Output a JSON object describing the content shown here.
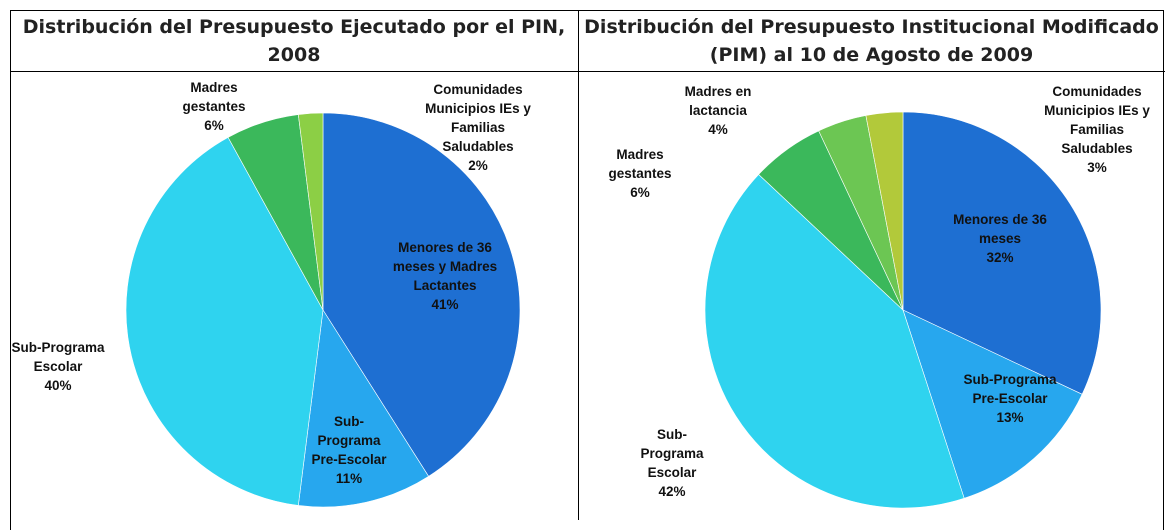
{
  "chart_data": [
    {
      "type": "pie",
      "title": "Distribución del Presupuesto Ejecutado por el PIN, 2008",
      "categories": [
        "Menores de 36 meses y Madres Lactantes",
        "Sub-Programa Pre-Escolar",
        "Sub-Programa Escolar",
        "Madres gestantes",
        "Comunidades Municipios IEs y Familias Saludables"
      ],
      "values": [
        41,
        11,
        40,
        6,
        2
      ],
      "value_labels": [
        "41%",
        "11%",
        "40%",
        "6%",
        "2%"
      ],
      "colors": [
        "#1e6fd2",
        "#27a7ee",
        "#2fd3ef",
        "#3bb85b",
        "#8ccf45"
      ]
    },
    {
      "type": "pie",
      "title": "Distribución del Presupuesto Institucional Modificado (PIM)  al 10 de Agosto de 2009",
      "categories": [
        "Menores de 36 meses",
        "Sub-Programa Pre-Escolar",
        "Sub-Programa Escolar",
        "Madres gestantes",
        "Madres en lactancia",
        "Comunidades Municipios IEs y Familias Saludables"
      ],
      "values": [
        32,
        13,
        42,
        6,
        4,
        3
      ],
      "value_labels": [
        "32%",
        "13%",
        "42%",
        "6%",
        "4%",
        "3%"
      ],
      "colors": [
        "#1e6fd2",
        "#27a7ee",
        "#2fd3ef",
        "#3bb85b",
        "#6cc653",
        "#b2c93a"
      ]
    }
  ]
}
